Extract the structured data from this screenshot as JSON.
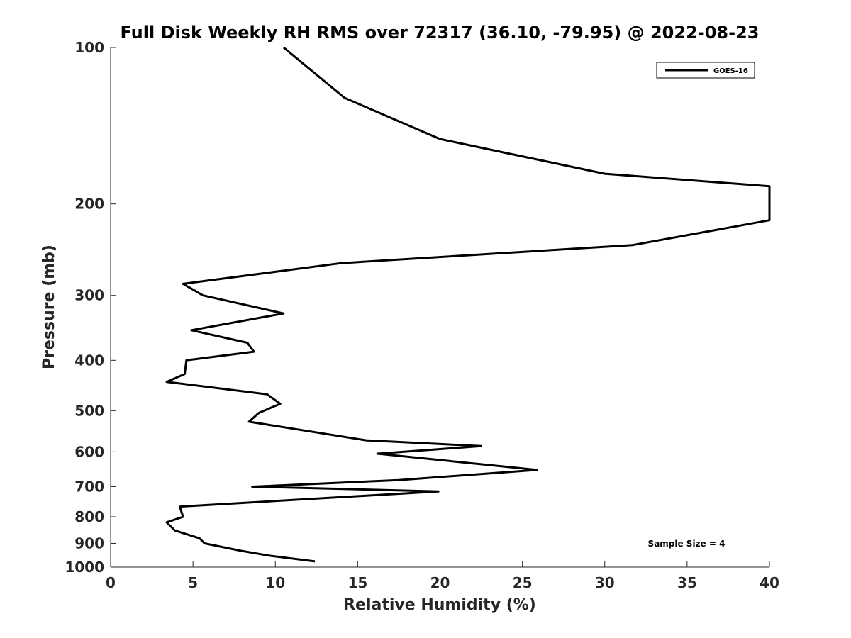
{
  "chart_data": {
    "type": "line",
    "title": "Full Disk Weekly RH RMS over 72317 (36.10, -79.95) @ 2022-08-23",
    "xlabel": "Relative Humidity (%)",
    "ylabel": "Pressure (mb)",
    "xlim": [
      0,
      40
    ],
    "ylim": [
      100,
      1000
    ],
    "y_scale": "log",
    "y_reversed": true,
    "x_ticks": [
      0,
      5,
      10,
      15,
      20,
      25,
      30,
      35,
      40
    ],
    "x_tick_labels": [
      "0",
      "5",
      "10",
      "15",
      "20",
      "25",
      "30",
      "35",
      "40"
    ],
    "y_ticks": [
      100,
      200,
      300,
      400,
      500,
      600,
      700,
      800,
      900,
      1000
    ],
    "y_tick_labels": [
      "100",
      "200",
      "300",
      "400",
      "500",
      "600",
      "700",
      "800",
      "900",
      "1000"
    ],
    "grid": false,
    "legend_position": "top-right",
    "annotation": "Sample Size = 4",
    "series": [
      {
        "name": "GOES-16",
        "color": "#000000",
        "points": [
          {
            "x": 10.5,
            "y": 100
          },
          {
            "x": 14.2,
            "y": 125
          },
          {
            "x": 20.0,
            "y": 150
          },
          {
            "x": 30.0,
            "y": 175
          },
          {
            "x": 40.0,
            "y": 185
          },
          {
            "x": 40.0,
            "y": 215
          },
          {
            "x": 31.7,
            "y": 240
          },
          {
            "x": 14.0,
            "y": 260
          },
          {
            "x": 4.4,
            "y": 285
          },
          {
            "x": 5.6,
            "y": 300
          },
          {
            "x": 10.5,
            "y": 325
          },
          {
            "x": 4.9,
            "y": 350
          },
          {
            "x": 8.3,
            "y": 370
          },
          {
            "x": 8.7,
            "y": 385
          },
          {
            "x": 4.6,
            "y": 400
          },
          {
            "x": 4.5,
            "y": 425
          },
          {
            "x": 3.4,
            "y": 440
          },
          {
            "x": 9.5,
            "y": 465
          },
          {
            "x": 10.3,
            "y": 485
          },
          {
            "x": 9.0,
            "y": 505
          },
          {
            "x": 8.4,
            "y": 525
          },
          {
            "x": 15.5,
            "y": 570
          },
          {
            "x": 22.5,
            "y": 585
          },
          {
            "x": 16.2,
            "y": 605
          },
          {
            "x": 25.9,
            "y": 650
          },
          {
            "x": 17.5,
            "y": 680
          },
          {
            "x": 8.6,
            "y": 700
          },
          {
            "x": 19.9,
            "y": 715
          },
          {
            "x": 4.2,
            "y": 765
          },
          {
            "x": 4.4,
            "y": 800
          },
          {
            "x": 3.4,
            "y": 820
          },
          {
            "x": 3.9,
            "y": 850
          },
          {
            "x": 5.4,
            "y": 880
          },
          {
            "x": 5.7,
            "y": 900
          },
          {
            "x": 7.9,
            "y": 930
          },
          {
            "x": 9.6,
            "y": 950
          },
          {
            "x": 12.4,
            "y": 975
          }
        ]
      }
    ]
  }
}
